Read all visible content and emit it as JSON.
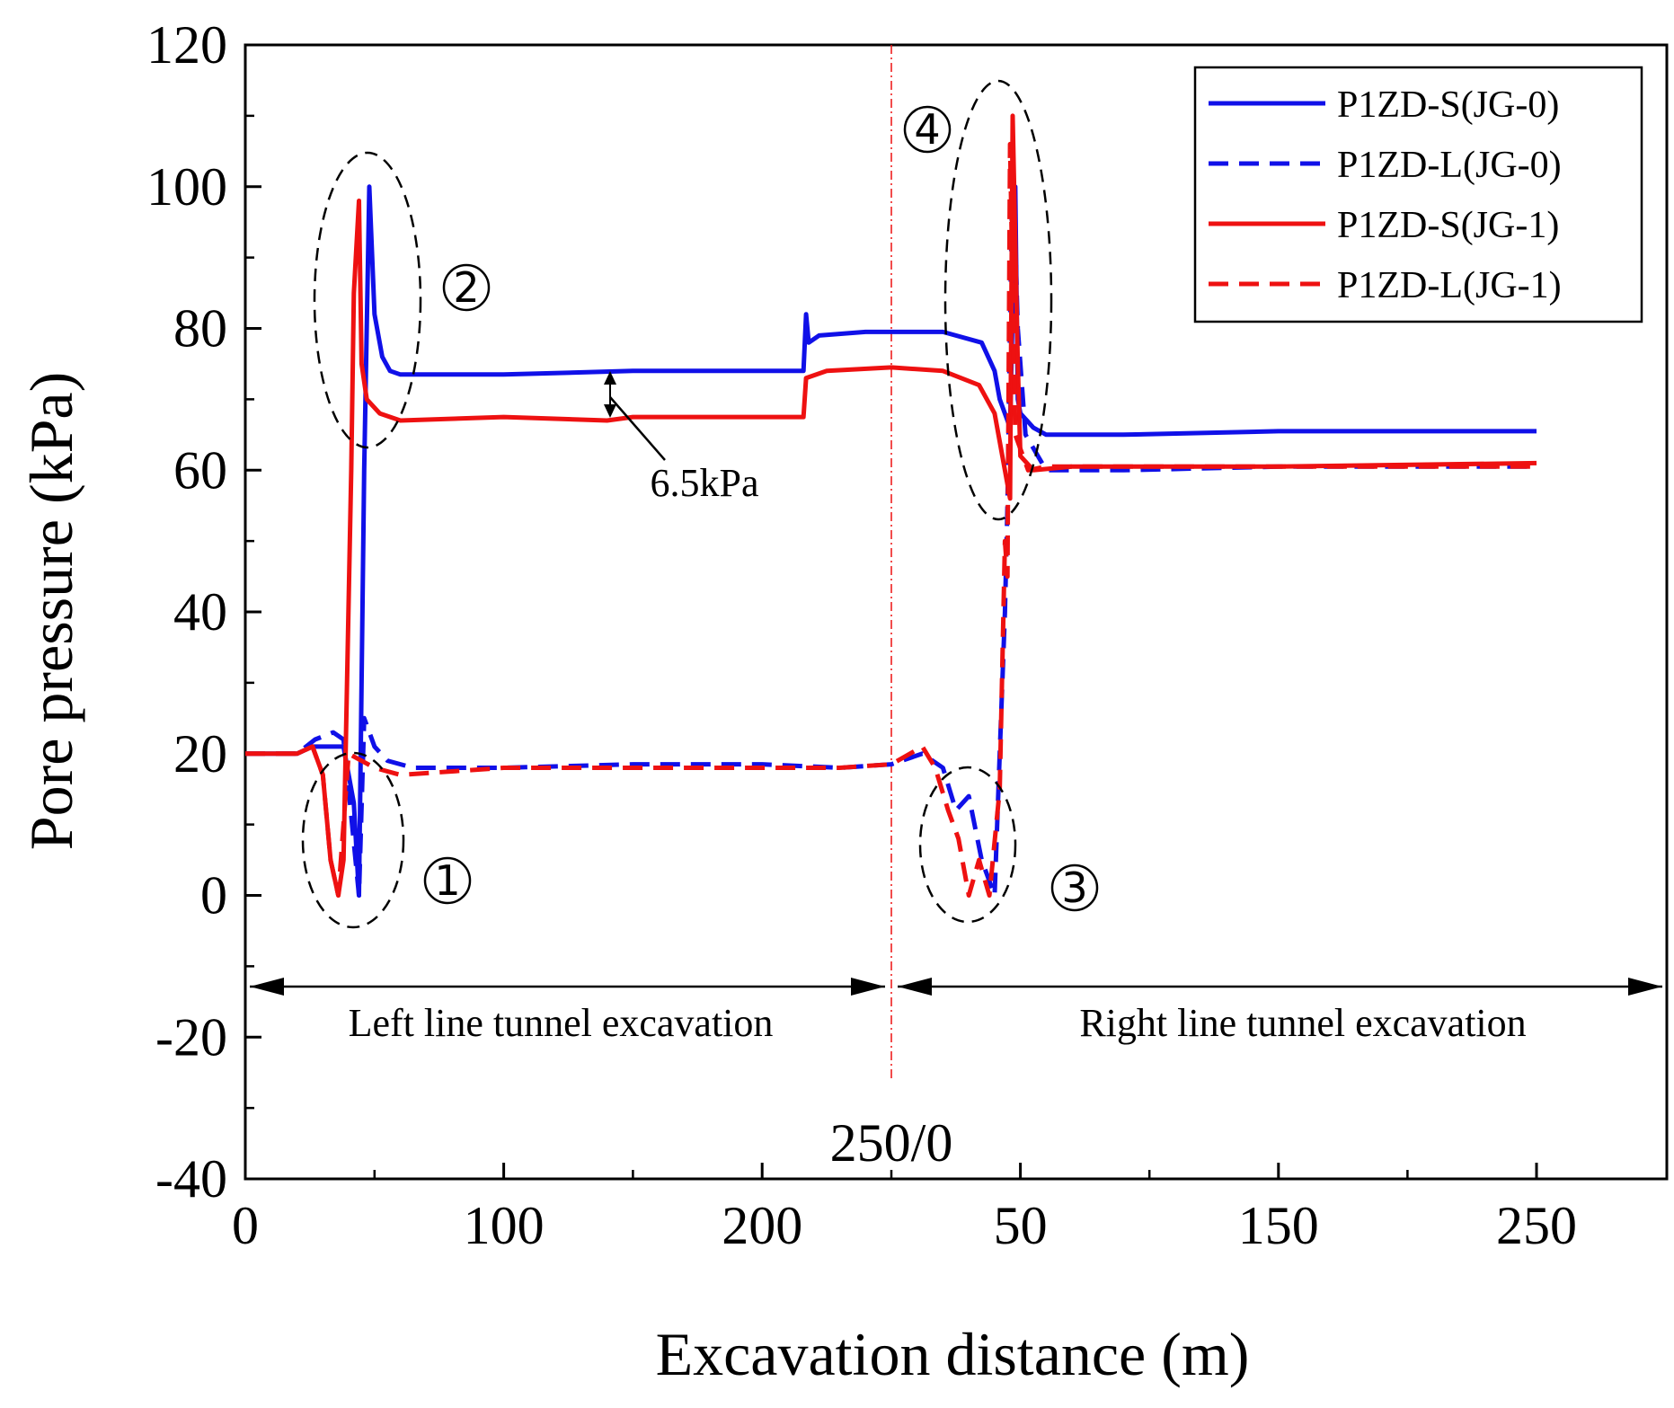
{
  "chart_data": {
    "type": "line",
    "xlabel": "Excavation distance (m)",
    "ylabel": "Pore pressure (kPa)",
    "ylim": [
      -40,
      120
    ],
    "yticks": [
      "-40",
      "-20",
      "0",
      "20",
      "40",
      "60",
      "80",
      "100",
      "120"
    ],
    "xticks_left": [
      "0",
      "100",
      "200"
    ],
    "xticks_right": [
      "50",
      "150",
      "250"
    ],
    "divider_label": "250/0",
    "left_phase_label": "Left line tunnel excavation",
    "right_phase_label": "Right line tunnel excavation",
    "diff_label": "6.5kPa",
    "circled_labels": [
      "①",
      "②",
      "③",
      "④"
    ],
    "series": [
      {
        "name": "P1ZD-S(JG-0)",
        "color": "#1010e8",
        "dash": "solid",
        "points": [
          [
            0,
            20
          ],
          [
            20,
            20
          ],
          [
            26,
            21
          ],
          [
            38,
            21
          ],
          [
            42,
            13
          ],
          [
            44,
            0
          ],
          [
            46,
            60
          ],
          [
            48,
            100
          ],
          [
            50,
            82
          ],
          [
            53,
            76
          ],
          [
            56,
            74
          ],
          [
            60,
            73.5
          ],
          [
            100,
            73.5
          ],
          [
            150,
            74
          ],
          [
            200,
            74
          ],
          [
            216,
            74
          ],
          [
            217,
            82
          ],
          [
            218,
            78
          ],
          [
            222,
            79
          ],
          [
            240,
            79.5
          ],
          [
            270,
            79.5
          ],
          [
            285,
            78
          ],
          [
            290,
            74
          ],
          [
            292,
            70
          ],
          [
            296,
            66
          ],
          [
            298,
            100
          ],
          [
            299,
            70
          ],
          [
            300,
            68
          ],
          [
            305,
            66
          ],
          [
            310,
            65
          ],
          [
            340,
            65
          ],
          [
            400,
            65.5
          ],
          [
            500,
            65.5
          ]
        ]
      },
      {
        "name": "P1ZD-L(JG-0)",
        "color": "#1010e8",
        "dash": "dashed",
        "points": [
          [
            0,
            20
          ],
          [
            20,
            20
          ],
          [
            27,
            22
          ],
          [
            34,
            23
          ],
          [
            38,
            22
          ],
          [
            40,
            15
          ],
          [
            44,
            0
          ],
          [
            46,
            25
          ],
          [
            50,
            21
          ],
          [
            55,
            19
          ],
          [
            65,
            18
          ],
          [
            100,
            18
          ],
          [
            150,
            18.5
          ],
          [
            200,
            18.5
          ],
          [
            230,
            18
          ],
          [
            250,
            18.5
          ],
          [
            262,
            20
          ],
          [
            270,
            18
          ],
          [
            275,
            12
          ],
          [
            280,
            14
          ],
          [
            285,
            5
          ],
          [
            290,
            0
          ],
          [
            292,
            20
          ],
          [
            294,
            40
          ],
          [
            295,
            55
          ],
          [
            297,
            105
          ],
          [
            299,
            80
          ],
          [
            302,
            65
          ],
          [
            310,
            60
          ],
          [
            340,
            60
          ],
          [
            400,
            60.5
          ],
          [
            500,
            60.5
          ]
        ]
      },
      {
        "name": "P1ZD-S(JG-1)",
        "color": "#ee1111",
        "dash": "solid",
        "points": [
          [
            0,
            20
          ],
          [
            20,
            20
          ],
          [
            26,
            21
          ],
          [
            30,
            17
          ],
          [
            33,
            5
          ],
          [
            36,
            0
          ],
          [
            38,
            5
          ],
          [
            41,
            60
          ],
          [
            42,
            85
          ],
          [
            44,
            98
          ],
          [
            45,
            75
          ],
          [
            47,
            70
          ],
          [
            52,
            68
          ],
          [
            60,
            67
          ],
          [
            100,
            67.5
          ],
          [
            140,
            67
          ],
          [
            150,
            67.5
          ],
          [
            216,
            67.5
          ],
          [
            217,
            73
          ],
          [
            225,
            74
          ],
          [
            250,
            74.5
          ],
          [
            270,
            74
          ],
          [
            284,
            72
          ],
          [
            290,
            68
          ],
          [
            293,
            62
          ],
          [
            296,
            56
          ],
          [
            297,
            110
          ],
          [
            299,
            75
          ],
          [
            300,
            62
          ],
          [
            305,
            60
          ],
          [
            320,
            60.5
          ],
          [
            400,
            60.5
          ],
          [
            500,
            61
          ]
        ]
      },
      {
        "name": "P1ZD-L(JG-1)",
        "color": "#ee1111",
        "dash": "dashed",
        "points": [
          [
            0,
            20
          ],
          [
            20,
            20
          ],
          [
            26,
            21
          ],
          [
            30,
            17
          ],
          [
            33,
            5
          ],
          [
            36,
            0
          ],
          [
            38,
            10
          ],
          [
            40,
            20
          ],
          [
            50,
            18
          ],
          [
            60,
            17
          ],
          [
            80,
            17.5
          ],
          [
            100,
            18
          ],
          [
            150,
            18
          ],
          [
            200,
            18
          ],
          [
            230,
            18
          ],
          [
            250,
            18.5
          ],
          [
            262,
            21
          ],
          [
            267,
            18
          ],
          [
            272,
            12
          ],
          [
            276,
            8
          ],
          [
            280,
            0
          ],
          [
            284,
            5
          ],
          [
            288,
            0
          ],
          [
            292,
            15
          ],
          [
            294,
            50
          ],
          [
            295,
            45
          ],
          [
            296,
            106
          ],
          [
            298,
            65
          ],
          [
            303,
            60
          ],
          [
            310,
            60.5
          ],
          [
            400,
            60.5
          ],
          [
            500,
            60.5
          ]
        ]
      }
    ]
  }
}
